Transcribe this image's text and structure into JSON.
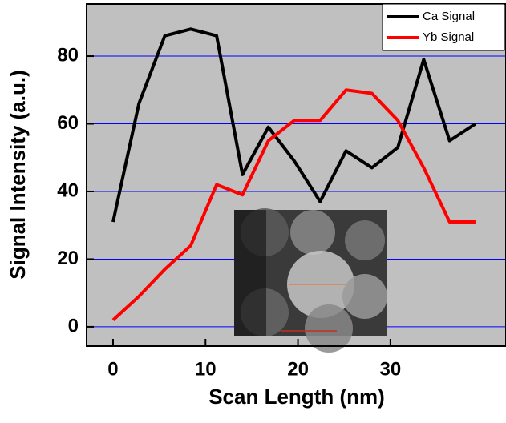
{
  "chart_data": {
    "type": "line",
    "xlabel": "Scan Length (nm)",
    "ylabel": "Signal Intensity (a.u.)",
    "x": [
      0,
      2.8,
      5.6,
      8.4,
      11.2,
      14,
      16.8,
      19.6,
      22.4,
      25.2,
      28,
      30.8,
      33.6,
      36.4,
      39.2
    ],
    "series": [
      {
        "name": "Ca Signal",
        "color": "#000000",
        "values": [
          31,
          66,
          86,
          88,
          86,
          45,
          59,
          49,
          37,
          52,
          47,
          53,
          79,
          55,
          60
        ]
      },
      {
        "name": "Yb Signal",
        "color": "#ff0000",
        "values": [
          2,
          9,
          17,
          24,
          42,
          39,
          55,
          61,
          61,
          70,
          69,
          61,
          47,
          31,
          31
        ]
      }
    ],
    "xlim": [
      -2.86,
      42.5
    ],
    "ylim": [
      -5.7,
      95.4
    ],
    "xticks": [
      0,
      10,
      20,
      30
    ],
    "yticks": [
      0,
      20,
      40,
      60,
      80
    ],
    "grid": true,
    "grid_color": "#0000ff",
    "background": "#c0c0c0",
    "legend": "upper right"
  }
}
